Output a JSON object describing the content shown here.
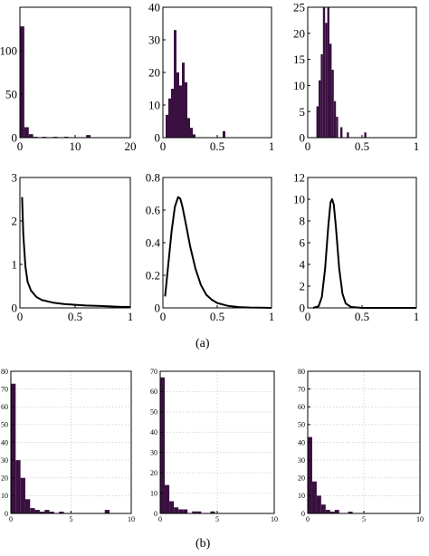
{
  "captions": {
    "a": "(a)",
    "b": "(b)"
  },
  "colors": {
    "bar": "#3a1040",
    "line": "#000000",
    "grid": "#c8c8c8",
    "axis": "#000000"
  },
  "chart_data": [
    {
      "id": "a-hist-1",
      "type": "bar",
      "grid": false,
      "xlim": [
        0,
        20
      ],
      "ylim": [
        0,
        150
      ],
      "xticks": [
        "0",
        "10",
        "20"
      ],
      "yticks": [
        "0",
        "50",
        "100"
      ],
      "bin_width": 0.8,
      "bins": [
        {
          "x": 0,
          "y": 128
        },
        {
          "x": 0.8,
          "y": 12
        },
        {
          "x": 1.6,
          "y": 4
        },
        {
          "x": 2.4,
          "y": 1
        },
        {
          "x": 4.0,
          "y": 1
        },
        {
          "x": 6.0,
          "y": 1
        },
        {
          "x": 8.0,
          "y": 1
        },
        {
          "x": 12.0,
          "y": 3
        }
      ]
    },
    {
      "id": "a-hist-2",
      "type": "bar",
      "grid": false,
      "xlim": [
        0,
        1
      ],
      "ylim": [
        0,
        40
      ],
      "xticks": [
        "0",
        "0.5",
        "1"
      ],
      "yticks": [
        "0",
        "10",
        "20",
        "30",
        "40"
      ],
      "bin_width": 0.025,
      "bins": [
        {
          "x": 0.025,
          "y": 7
        },
        {
          "x": 0.05,
          "y": 12
        },
        {
          "x": 0.075,
          "y": 15
        },
        {
          "x": 0.1,
          "y": 33
        },
        {
          "x": 0.125,
          "y": 20
        },
        {
          "x": 0.15,
          "y": 16
        },
        {
          "x": 0.175,
          "y": 23
        },
        {
          "x": 0.2,
          "y": 17
        },
        {
          "x": 0.225,
          "y": 6
        },
        {
          "x": 0.25,
          "y": 3
        },
        {
          "x": 0.275,
          "y": 1
        },
        {
          "x": 0.55,
          "y": 2
        }
      ]
    },
    {
      "id": "a-hist-3",
      "type": "bar",
      "grid": false,
      "xlim": [
        0,
        1
      ],
      "ylim": [
        0,
        25
      ],
      "xticks": [
        "0",
        "0.5",
        "1"
      ],
      "yticks": [
        "0",
        "5",
        "10",
        "15",
        "20",
        "25"
      ],
      "bin_width": 0.02,
      "bins": [
        {
          "x": 0.08,
          "y": 6
        },
        {
          "x": 0.1,
          "y": 11
        },
        {
          "x": 0.12,
          "y": 16
        },
        {
          "x": 0.14,
          "y": 25
        },
        {
          "x": 0.16,
          "y": 22
        },
        {
          "x": 0.18,
          "y": 25
        },
        {
          "x": 0.2,
          "y": 18
        },
        {
          "x": 0.22,
          "y": 13
        },
        {
          "x": 0.24,
          "y": 7
        },
        {
          "x": 0.26,
          "y": 4
        },
        {
          "x": 0.3,
          "y": 2
        },
        {
          "x": 0.36,
          "y": 1
        },
        {
          "x": 0.52,
          "y": 1
        }
      ]
    },
    {
      "id": "a-pdf-1",
      "type": "line",
      "grid": false,
      "xlim": [
        0,
        1
      ],
      "ylim": [
        0,
        3
      ],
      "xticks": [
        "0",
        "0.5",
        "1"
      ],
      "yticks": [
        "0",
        "1",
        "2",
        "3"
      ],
      "x": [
        0.02,
        0.03,
        0.05,
        0.07,
        0.1,
        0.15,
        0.2,
        0.3,
        0.4,
        0.5,
        0.6,
        0.7,
        0.8,
        0.9,
        1.0
      ],
      "y": [
        2.55,
        1.7,
        0.95,
        0.6,
        0.4,
        0.25,
        0.18,
        0.12,
        0.09,
        0.07,
        0.055,
        0.045,
        0.035,
        0.025,
        0.02
      ]
    },
    {
      "id": "a-pdf-2",
      "type": "line",
      "grid": false,
      "xlim": [
        0,
        1
      ],
      "ylim": [
        0,
        0.8
      ],
      "xticks": [
        "0",
        "0.5",
        "1"
      ],
      "yticks": [
        "0",
        "0.2",
        "0.4",
        "0.6",
        "0.8"
      ],
      "x": [
        0.02,
        0.05,
        0.08,
        0.11,
        0.14,
        0.16,
        0.18,
        0.21,
        0.25,
        0.3,
        0.35,
        0.4,
        0.45,
        0.5,
        0.6,
        0.7,
        0.8,
        0.9,
        1.0
      ],
      "y": [
        0.07,
        0.27,
        0.47,
        0.62,
        0.68,
        0.67,
        0.62,
        0.52,
        0.38,
        0.24,
        0.14,
        0.08,
        0.05,
        0.03,
        0.012,
        0.005,
        0.002,
        0.001,
        0.0
      ]
    },
    {
      "id": "a-pdf-3",
      "type": "line",
      "grid": false,
      "xlim": [
        0,
        1
      ],
      "ylim": [
        0,
        12
      ],
      "xticks": [
        "0",
        "0.5",
        "1"
      ],
      "yticks": [
        "0",
        "2",
        "4",
        "6",
        "8",
        "10",
        "12"
      ],
      "x": [
        0.05,
        0.1,
        0.13,
        0.16,
        0.19,
        0.21,
        0.225,
        0.24,
        0.26,
        0.29,
        0.32,
        0.35,
        0.4,
        0.5,
        0.6,
        1.0
      ],
      "y": [
        0.0,
        0.15,
        1.0,
        3.6,
        7.6,
        9.7,
        10.0,
        9.5,
        7.4,
        3.6,
        1.3,
        0.4,
        0.08,
        0.0,
        0.0,
        0.0
      ]
    },
    {
      "id": "b-hist-1",
      "type": "bar",
      "grid": true,
      "xlim": [
        0,
        10
      ],
      "ylim": [
        0,
        80
      ],
      "xticks": [
        "0",
        "5",
        "10"
      ],
      "yticks": [
        "0",
        "10",
        "20",
        "30",
        "40",
        "50",
        "60",
        "70",
        "80"
      ],
      "bin_width": 0.4,
      "bins": [
        {
          "x": 0,
          "y": 73
        },
        {
          "x": 0.4,
          "y": 30
        },
        {
          "x": 0.8,
          "y": 20
        },
        {
          "x": 1.2,
          "y": 8
        },
        {
          "x": 1.6,
          "y": 3
        },
        {
          "x": 2.0,
          "y": 2
        },
        {
          "x": 2.4,
          "y": 1
        },
        {
          "x": 2.8,
          "y": 2
        },
        {
          "x": 3.2,
          "y": 1
        },
        {
          "x": 4.0,
          "y": 1
        },
        {
          "x": 7.8,
          "y": 2
        }
      ]
    },
    {
      "id": "b-hist-2",
      "type": "bar",
      "grid": true,
      "xlim": [
        0,
        10
      ],
      "ylim": [
        0,
        70
      ],
      "xticks": [
        "0",
        "5",
        "10"
      ],
      "yticks": [
        "0",
        "10",
        "20",
        "30",
        "40",
        "50",
        "60",
        "70"
      ],
      "bin_width": 0.4,
      "bins": [
        {
          "x": 0,
          "y": 67
        },
        {
          "x": 0.4,
          "y": 14
        },
        {
          "x": 0.8,
          "y": 6
        },
        {
          "x": 1.2,
          "y": 3
        },
        {
          "x": 1.6,
          "y": 2
        },
        {
          "x": 2.0,
          "y": 2
        },
        {
          "x": 2.8,
          "y": 1
        },
        {
          "x": 3.2,
          "y": 1
        },
        {
          "x": 4.4,
          "y": 1
        }
      ]
    },
    {
      "id": "b-hist-3",
      "type": "bar",
      "grid": true,
      "xlim": [
        0,
        10
      ],
      "ylim": [
        0,
        80
      ],
      "xticks": [
        "0",
        "5",
        "10"
      ],
      "yticks": [
        "0",
        "10",
        "20",
        "30",
        "40",
        "50",
        "60",
        "70",
        "80"
      ],
      "bin_width": 0.4,
      "bins": [
        {
          "x": 0,
          "y": 43
        },
        {
          "x": 0.4,
          "y": 18
        },
        {
          "x": 0.8,
          "y": 10
        },
        {
          "x": 1.2,
          "y": 5
        },
        {
          "x": 1.6,
          "y": 2
        },
        {
          "x": 2.0,
          "y": 1
        },
        {
          "x": 2.4,
          "y": 2
        },
        {
          "x": 3.6,
          "y": 1
        }
      ]
    }
  ]
}
